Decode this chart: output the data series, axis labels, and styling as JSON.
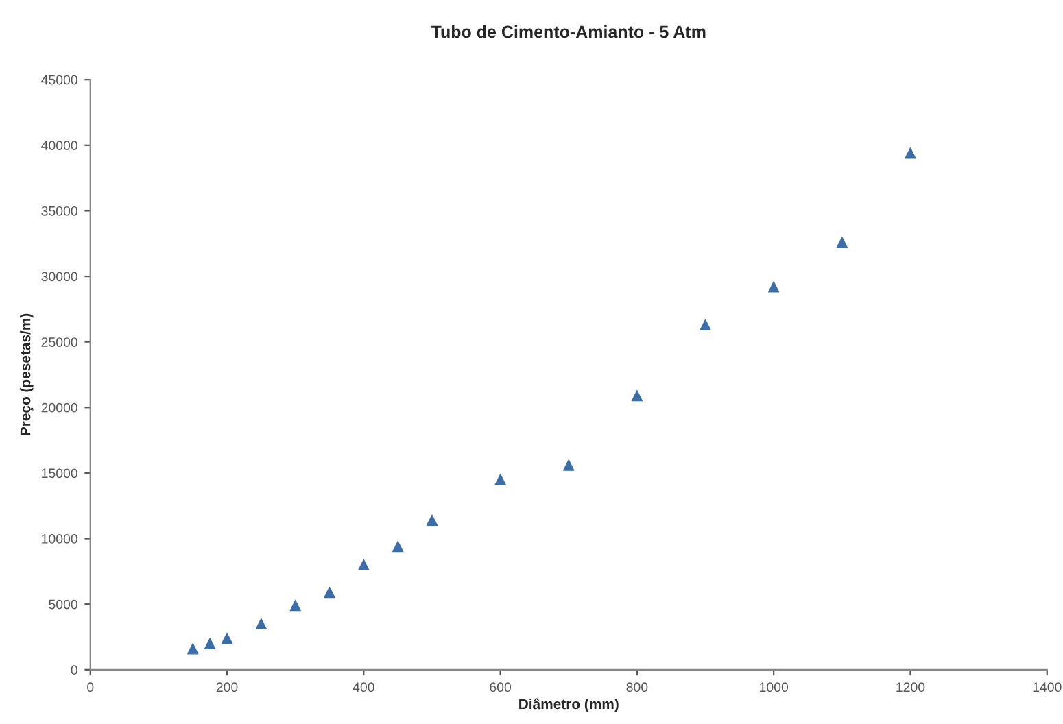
{
  "chart_data": {
    "type": "scatter",
    "title": "Tubo de Cimento-Amianto - 5 Atm",
    "xlabel": "Diâmetro (mm)",
    "ylabel": "Preço (pesetas/m)",
    "x": [
      150,
      175,
      200,
      250,
      300,
      350,
      400,
      450,
      500,
      600,
      700,
      800,
      900,
      1000,
      1100,
      1200
    ],
    "series": [
      {
        "color": "#3b6ea8",
        "values": [
          1600,
          2000,
          2400,
          3500,
          4900,
          5900,
          8000,
          9400,
          11400,
          14500,
          15600,
          20900,
          26300,
          29200,
          32600,
          39400
        ]
      }
    ],
    "xlim": [
      0,
      1400
    ],
    "xticks": [
      0,
      200,
      400,
      600,
      800,
      1000,
      1200,
      1400
    ],
    "ylim": [
      0,
      45000
    ],
    "yticks": [
      0,
      5000,
      10000,
      15000,
      20000,
      25000,
      30000,
      35000,
      40000,
      45000
    ],
    "marker": "triangle",
    "grid": false,
    "legend": false
  }
}
